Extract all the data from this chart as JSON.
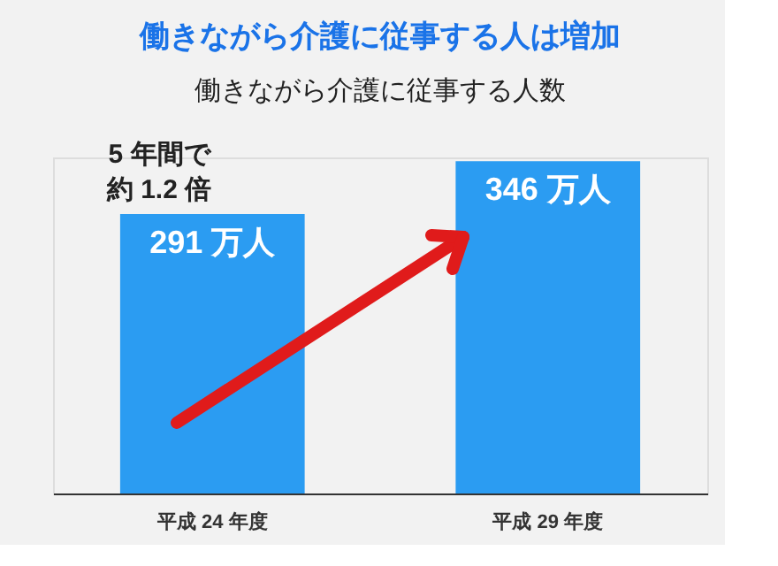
{
  "chart_data": {
    "type": "bar",
    "title": "働きながら介護に従事する人は増加",
    "subtitle": "働きながら介護に従事する人数",
    "categories": [
      "平成 24 年度",
      "平成 29 年度"
    ],
    "values": [
      291,
      346
    ],
    "color": "#2b9cf2",
    "value_labels": [
      "291 万人",
      "346 万人"
    ],
    "annotations": [
      "5 年間で",
      "約 1.2 倍"
    ]
  }
}
